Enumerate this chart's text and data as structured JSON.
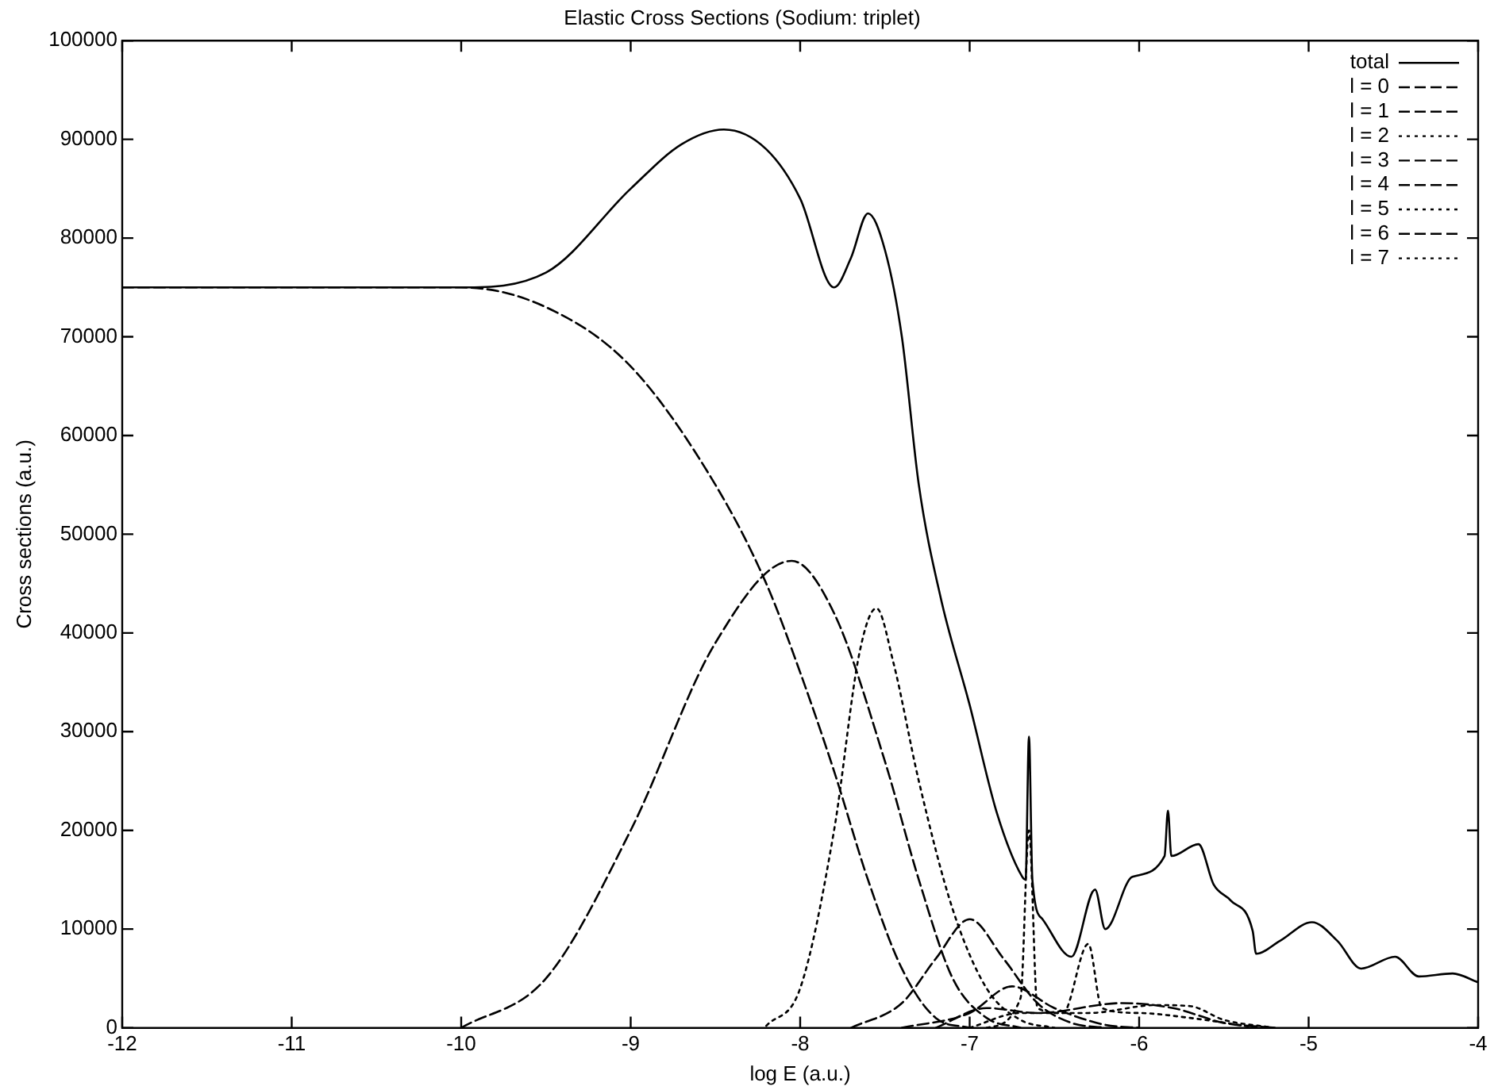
{
  "chart_data": {
    "type": "line",
    "title": "Elastic Cross Sections (Sodium: triplet)",
    "xlabel": "log E (a.u.)",
    "ylabel": "Cross sections (a.u.)",
    "xlim": [
      -12,
      -4
    ],
    "xticks": [
      -12,
      -11,
      -10,
      -9,
      -8,
      -7,
      -6,
      -5,
      -4
    ],
    "ylim": [
      0,
      100000
    ],
    "yticks": [
      0,
      10000,
      20000,
      30000,
      40000,
      50000,
      60000,
      70000,
      80000,
      90000,
      100000
    ],
    "grid": false,
    "legend": "top right",
    "marker": "none",
    "series": [
      {
        "name": "total",
        "color": "#000000",
        "line_style": "solid",
        "x": [
          -12,
          -11,
          -10,
          -9.5,
          -9,
          -8.7,
          -8.45,
          -8.2,
          -8,
          -7.8,
          -7.7,
          -7.6,
          -7.5,
          -7.4,
          -7.3,
          -7.17,
          -7,
          -6.84,
          -6.69,
          -6.67,
          -6.65,
          -6.63,
          -6.57,
          -6.4,
          -6.26,
          -6.2,
          -6.04,
          -5.85,
          -5.83,
          -5.81,
          -5.65,
          -5.56,
          -5.46,
          -5.33,
          -5.31,
          -5.17,
          -4.98,
          -4.83,
          -4.69,
          -4.49,
          -4.35,
          -4.15,
          -4
        ],
        "values": [
          75000,
          75000,
          75000,
          76500,
          85000,
          89500,
          91000,
          89000,
          84000,
          75000,
          78000,
          82500,
          78800,
          70000,
          55000,
          43500,
          32700,
          21800,
          15300,
          15000,
          29500,
          15000,
          11000,
          7200,
          14000,
          10000,
          15300,
          17400,
          22000,
          17400,
          18600,
          14500,
          12900,
          9800,
          7500,
          8800,
          10700,
          8800,
          6000,
          7200,
          5200,
          5500,
          4600
        ]
      },
      {
        "name": "l = 0",
        "color": "#000000",
        "line_style": "dashed",
        "x": [
          -12,
          -10,
          -9.5,
          -9,
          -8.5,
          -8.2,
          -8,
          -7.8,
          -7.6,
          -7.4,
          -7.2,
          -7
        ],
        "values": [
          75000,
          75000,
          73000,
          67000,
          55000,
          45000,
          36000,
          26000,
          15000,
          6000,
          1000,
          0
        ]
      },
      {
        "name": "l = 1",
        "color": "#000000",
        "line_style": "dashed",
        "x": [
          -10,
          -9.5,
          -9,
          -8.5,
          -8.05,
          -7.8,
          -7.5,
          -7.3,
          -7.1,
          -6.9,
          -6.7
        ],
        "values": [
          0,
          5000,
          20000,
          39000,
          47300,
          42000,
          27000,
          15000,
          5000,
          1000,
          0
        ]
      },
      {
        "name": "l = 2",
        "color": "#000000",
        "line_style": "dotted",
        "x": [
          -8.2,
          -8,
          -7.8,
          -7.65,
          -7.55,
          -7.45,
          -7.3,
          -7.1,
          -6.9,
          -6.7,
          -6.5
        ],
        "values": [
          200,
          4000,
          20000,
          38000,
          42500,
          37000,
          25000,
          12000,
          4000,
          800,
          0
        ]
      },
      {
        "name": "l = 3",
        "color": "#000000",
        "line_style": "dashed",
        "x": [
          -7.7,
          -7.4,
          -7.2,
          -7,
          -6.8,
          -6.6,
          -6.4,
          -6.2
        ],
        "values": [
          0,
          2500,
          7000,
          11000,
          7000,
          2500,
          500,
          0
        ]
      },
      {
        "name": "l = 4",
        "color": "#000000",
        "line_style": "dashed",
        "x": [
          -7.4,
          -7,
          -6.75,
          -6.5,
          -6.2,
          -6
        ],
        "values": [
          0,
          1500,
          4200,
          2000,
          300,
          0
        ]
      },
      {
        "name": "l = 5",
        "color": "#000000",
        "line_style": "dotted",
        "x": [
          -6.9,
          -6.7,
          -6.65,
          -6.6,
          -6.45,
          -6.3,
          -6.22,
          -6,
          -5.7,
          -5.3
        ],
        "values": [
          0,
          3000,
          20000,
          2000,
          1500,
          8500,
          2000,
          1500,
          1000,
          0
        ]
      },
      {
        "name": "l = 6",
        "color": "#000000",
        "line_style": "dashed",
        "x": [
          -7.2,
          -6.9,
          -6.6,
          -6.1,
          -5.8,
          -5.5,
          -5.2
        ],
        "values": [
          0,
          2000,
          1500,
          2500,
          2000,
          500,
          0
        ]
      },
      {
        "name": "l = 7",
        "color": "#000000",
        "line_style": "dotted",
        "x": [
          -7,
          -6.7,
          -6.3,
          -5.9,
          -5.7,
          -5.5,
          -5.2
        ],
        "values": [
          0,
          1500,
          1500,
          2300,
          2200,
          800,
          0
        ]
      }
    ]
  }
}
